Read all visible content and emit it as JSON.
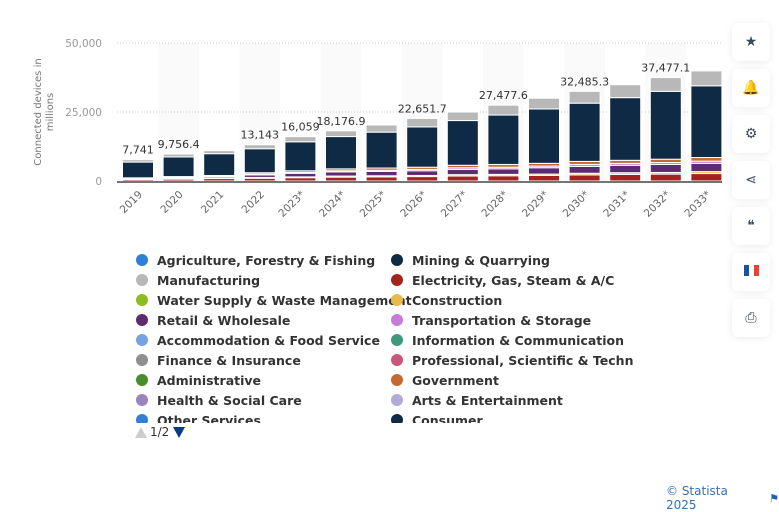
{
  "chart_data": {
    "type": "bar",
    "stacked": true,
    "ylabel": "Connected devices in millions",
    "ylim": [
      0,
      50000
    ],
    "yticks": [
      "0",
      "25,000",
      "50,000"
    ],
    "ytick_values": [
      0,
      25000,
      50000
    ],
    "grid": true,
    "categories": [
      "2019",
      "2020",
      "2021",
      "2022",
      "2023*",
      "2024*",
      "2025*",
      "2026*",
      "2027*",
      "2028*",
      "2029*",
      "2030*",
      "2031*",
      "2032*",
      "2033*"
    ],
    "total_labels": [
      "7,741",
      "9,756.4",
      null,
      "13,143",
      "16,059",
      "18,176.9",
      null,
      "22,651.7",
      null,
      "27,477.6",
      null,
      "32,485.3",
      null,
      "37,477.1",
      null
    ],
    "series": [
      {
        "name": "Electricity, Gas, Steam & A/C",
        "color": "#a3231f",
        "values": [
          600,
          700,
          900,
          1000,
          1200,
          1400,
          1500,
          1600,
          1800,
          1900,
          2000,
          2200,
          2400,
          2500,
          2700
        ]
      },
      {
        "name": "Construction",
        "color": "#e9b949",
        "values": [
          100,
          150,
          150,
          300,
          300,
          400,
          400,
          400,
          500,
          500,
          500,
          600,
          600,
          600,
          700
        ]
      },
      {
        "name": "Retail & Wholesale",
        "color": "#5b2c6f",
        "values": [
          200,
          300,
          500,
          900,
          1300,
          1500,
          1600,
          1700,
          1900,
          2000,
          2300,
          2500,
          2700,
          2900,
          3000
        ]
      },
      {
        "name": "Transportation & Storage",
        "color": "#c57cd8",
        "values": [
          100,
          150,
          200,
          300,
          300,
          400,
          400,
          500,
          600,
          600,
          600,
          700,
          700,
          700,
          800
        ]
      },
      {
        "name": "Government",
        "color": "#c5692e",
        "values": [
          150,
          300,
          250,
          500,
          600,
          700,
          800,
          800,
          900,
          1000,
          1000,
          1100,
          1100,
          1200,
          1300
        ]
      },
      {
        "name": "Mining & Quarrying",
        "color": "#0f2a44",
        "values": [
          5700,
          7100,
          7900,
          8700,
          10500,
          11700,
          13000,
          14600,
          16200,
          17900,
          19700,
          21100,
          22700,
          24600,
          26000
        ]
      },
      {
        "name": "Manufacturing",
        "color": "#b8b8b8",
        "values": [
          891,
          1056.4,
          1100,
          1443,
          1859,
          2076.9,
          2600,
          3051.7,
          3100,
          3577.6,
          3900,
          4285.3,
          4700,
          4977.1,
          5400
        ]
      }
    ],
    "legend": {
      "placement": "bottom",
      "items": [
        {
          "label": "Agriculture, Forestry & Fishing",
          "color": "#2f7ed8"
        },
        {
          "label": "Mining & Quarrying",
          "color": "#0f2a44"
        },
        {
          "label": "Manufacturing",
          "color": "#b8b8b8"
        },
        {
          "label": "Electricity, Gas, Steam & A/C",
          "color": "#a3231f"
        },
        {
          "label": "Water Supply & Waste Management",
          "color": "#8bbc21"
        },
        {
          "label": "Construction",
          "color": "#e9b949"
        },
        {
          "label": "Retail & Wholesale",
          "color": "#5b2c6f"
        },
        {
          "label": "Transportation & Storage",
          "color": "#c57cd8"
        },
        {
          "label": "Accommodation & Food Service",
          "color": "#77a1e5"
        },
        {
          "label": "Information & Communication",
          "color": "#3d9a7e"
        },
        {
          "label": "Finance & Insurance",
          "color": "#8f8f8f"
        },
        {
          "label": "Professional, Scientific & Technical",
          "color": "#c9567e"
        },
        {
          "label": "Administrative",
          "color": "#4a8c2a"
        },
        {
          "label": "Government",
          "color": "#c5692e"
        },
        {
          "label": "Health & Social Care",
          "color": "#9a84c0"
        },
        {
          "label": "Arts & Entertainment",
          "color": "#b3a9d8"
        },
        {
          "label": "Other Services",
          "color": "#2f7ed8"
        },
        {
          "label": "Consumer",
          "color": "#0f2a44"
        }
      ],
      "page": "1/2"
    }
  },
  "sidebar": [
    {
      "icon": "star-icon",
      "glyph": "★"
    },
    {
      "icon": "bell-icon",
      "glyph": "🔔"
    },
    {
      "icon": "gear-icon",
      "glyph": "⚙"
    },
    {
      "icon": "share-icon",
      "glyph": "⋖"
    },
    {
      "icon": "quote-icon",
      "glyph": "❝"
    },
    {
      "icon": "french-flag-icon",
      "glyph": ""
    },
    {
      "icon": "print-icon",
      "glyph": "⎙"
    }
  ],
  "footer": {
    "copyright": "© Statista 2025"
  }
}
